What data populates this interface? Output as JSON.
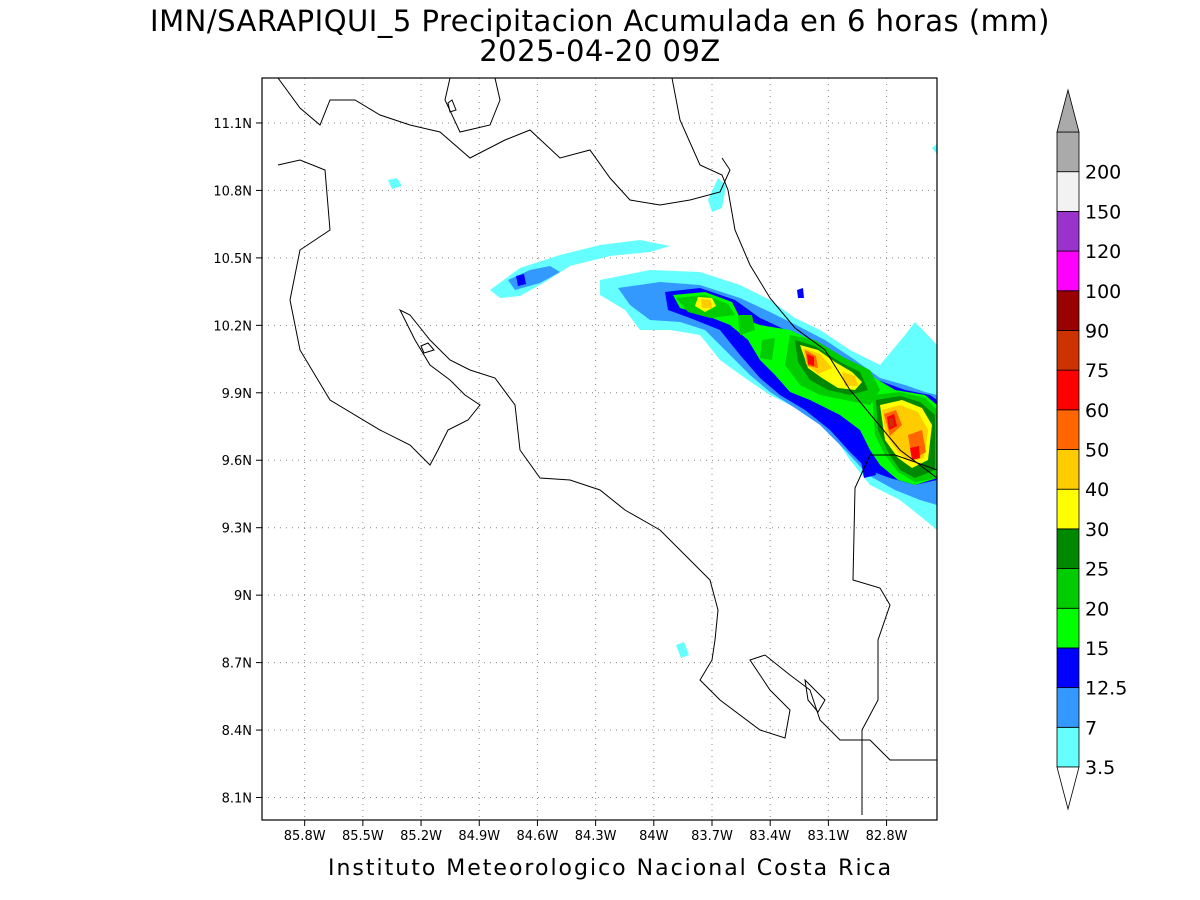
{
  "title": {
    "line1": "IMN/SARAPIQUI_5 Precipitacion Acumulada en 6 horas (mm)",
    "line2": "2025-04-20 09Z"
  },
  "footer": "Instituto Meteorologico Nacional Costa Rica",
  "map": {
    "lon_range": [
      -86.02,
      -82.54
    ],
    "lat_range": [
      8.0,
      11.3
    ],
    "lon_ticks": [
      {
        "value": -85.8,
        "label": "85.8W"
      },
      {
        "value": -85.5,
        "label": "85.5W"
      },
      {
        "value": -85.2,
        "label": "85.2W"
      },
      {
        "value": -84.9,
        "label": "84.9W"
      },
      {
        "value": -84.6,
        "label": "84.6W"
      },
      {
        "value": -84.3,
        "label": "84.3W"
      },
      {
        "value": -84.0,
        "label": "84W"
      },
      {
        "value": -83.7,
        "label": "83.7W"
      },
      {
        "value": -83.4,
        "label": "83.4W"
      },
      {
        "value": -83.1,
        "label": "83.1W"
      },
      {
        "value": -82.8,
        "label": "82.8W"
      }
    ],
    "lat_ticks": [
      {
        "value": 11.1,
        "label": "11.1N"
      },
      {
        "value": 10.8,
        "label": "10.8N"
      },
      {
        "value": 10.5,
        "label": "10.5N"
      },
      {
        "value": 10.2,
        "label": "10.2N"
      },
      {
        "value": 9.9,
        "label": "9.9N"
      },
      {
        "value": 9.6,
        "label": "9.6N"
      },
      {
        "value": 9.3,
        "label": "9.3N"
      },
      {
        "value": 9.0,
        "label": "9N"
      },
      {
        "value": 8.7,
        "label": "8.7N"
      },
      {
        "value": 8.4,
        "label": "8.4N"
      },
      {
        "value": 8.1,
        "label": "8.1N"
      }
    ],
    "grid": "dotted"
  },
  "colorbar": {
    "unit": "mm",
    "levels": [
      {
        "label": "3.5",
        "color": "#66ffff"
      },
      {
        "label": "7",
        "color": "#3399ff"
      },
      {
        "label": "12.5",
        "color": "#0000ff"
      },
      {
        "label": "15",
        "color": "#00ff00"
      },
      {
        "label": "20",
        "color": "#00cc00"
      },
      {
        "label": "25",
        "color": "#008800"
      },
      {
        "label": "30",
        "color": "#ffff00"
      },
      {
        "label": "40",
        "color": "#ffcc00"
      },
      {
        "label": "50",
        "color": "#ff6600"
      },
      {
        "label": "60",
        "color": "#ff0000"
      },
      {
        "label": "75",
        "color": "#cc3300"
      },
      {
        "label": "90",
        "color": "#990000"
      },
      {
        "label": "100",
        "color": "#ff00ff"
      },
      {
        "label": "120",
        "color": "#9933cc"
      },
      {
        "label": "150",
        "color": "#f2f2f2"
      },
      {
        "label": "200",
        "color": "#aaaaaa"
      }
    ],
    "lower_arrow_color": "#ffffff",
    "upper_arrow_color": "#aaaaaa"
  }
}
